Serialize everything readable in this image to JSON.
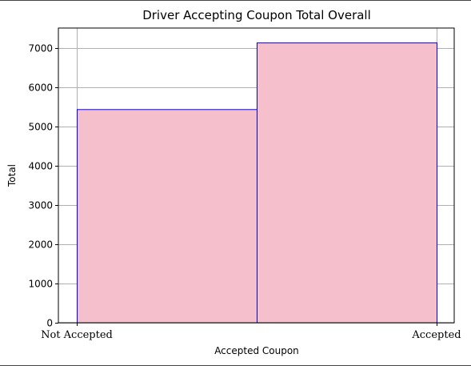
{
  "chart_data": {
    "type": "bar",
    "title": "Driver Accepting Coupon Total Overall",
    "xlabel": "Accepted Coupon",
    "ylabel": "Total",
    "categories": [
      "Not Accepted",
      "Accepted"
    ],
    "values": [
      5440,
      7140
    ],
    "ylim": [
      0,
      7520
    ],
    "yticks": [
      0,
      1000,
      2000,
      3000,
      4000,
      5000,
      6000,
      7000
    ],
    "grid": true,
    "bar_fill": "#f5c0cb",
    "bar_edge": "#0000ff",
    "grid_color": "#b0b0b0"
  }
}
